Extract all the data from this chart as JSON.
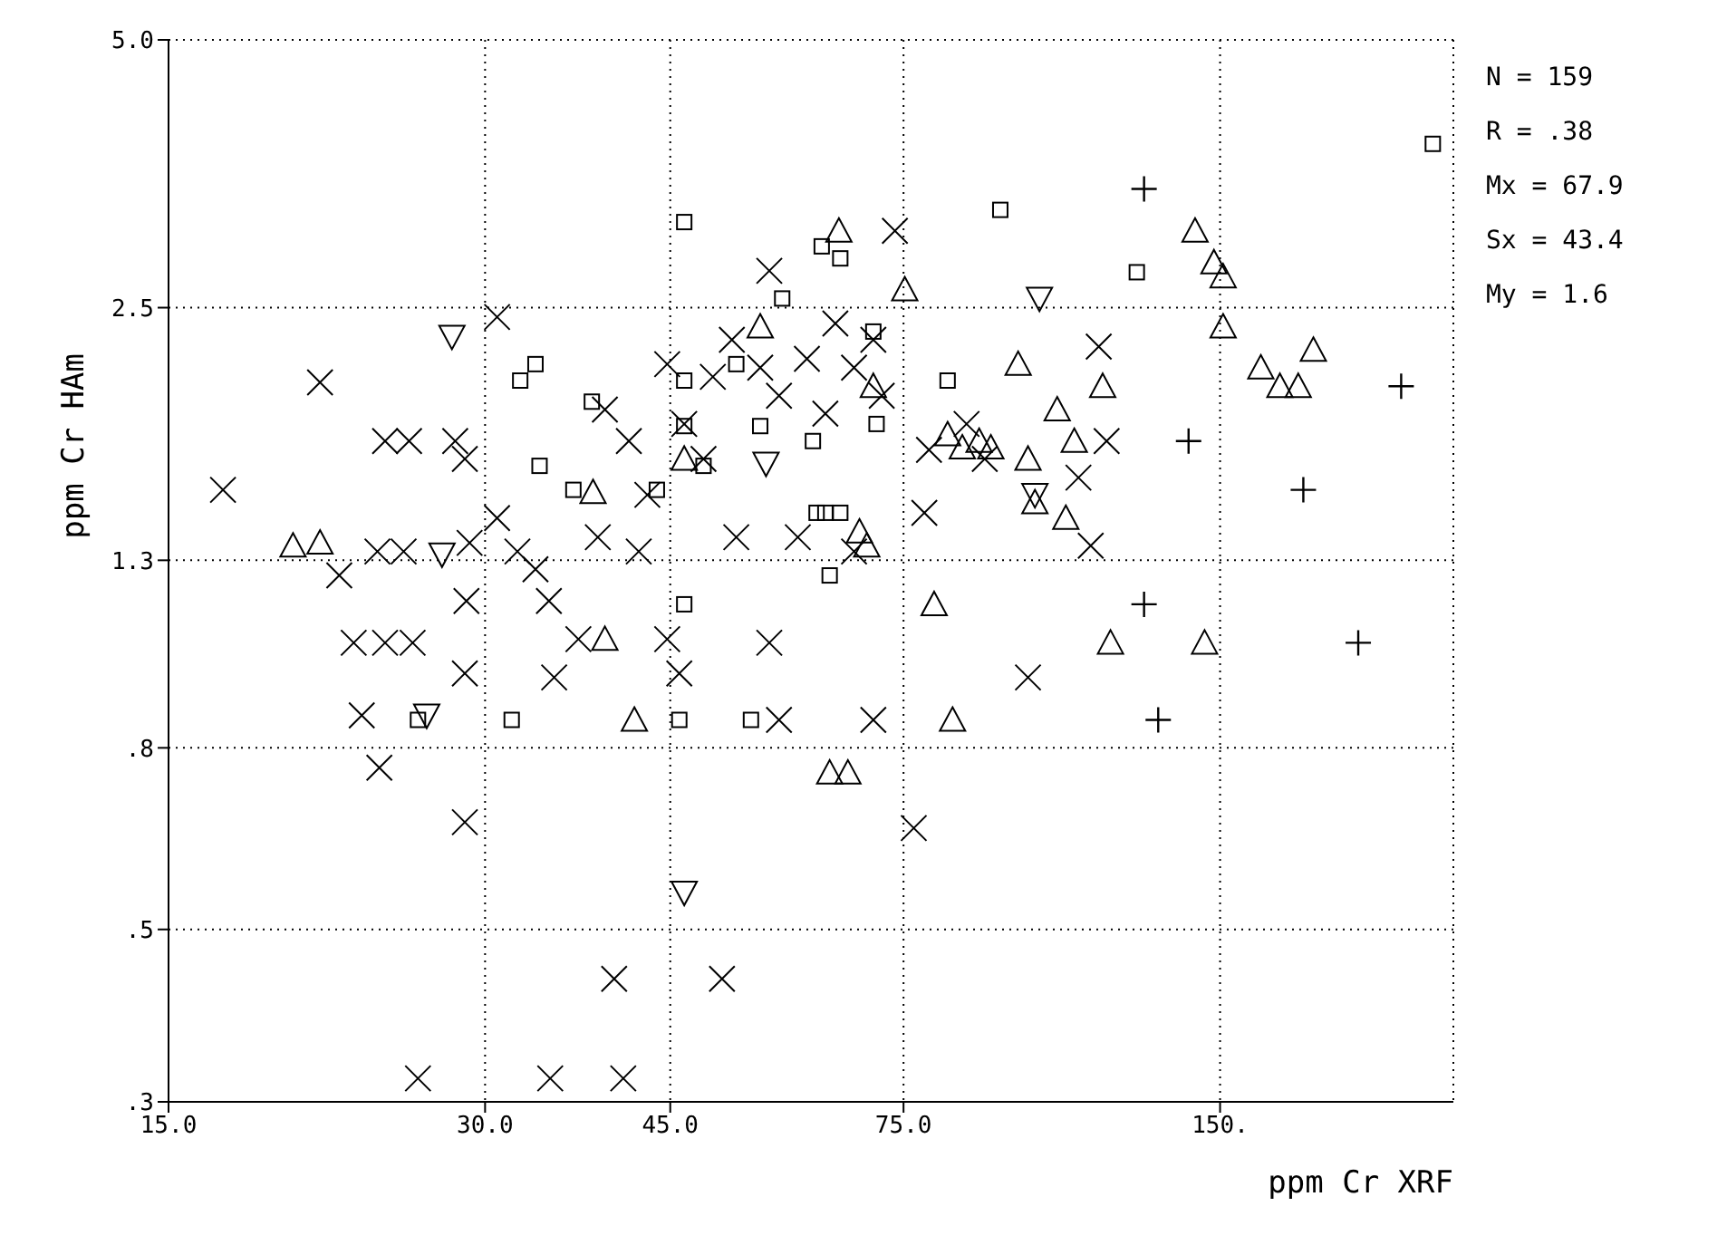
{
  "chart_data": {
    "type": "scatter",
    "xlabel": "ppm Cr XRF",
    "ylabel": "ppm Cr HAm",
    "log": "xy",
    "grid": true,
    "xlim": [
      15,
      250
    ],
    "ylim": [
      0.32,
      5.0
    ],
    "xticks": [
      {
        "value": 15,
        "label": "15.0"
      },
      {
        "value": 30,
        "label": "30.0"
      },
      {
        "value": 45,
        "label": "45.0"
      },
      {
        "value": 75,
        "label": "75.0"
      },
      {
        "value": 150,
        "label": "150."
      }
    ],
    "yticks": [
      {
        "value": 0.32,
        "label": ".3"
      },
      {
        "value": 0.5,
        "label": ".5"
      },
      {
        "value": 0.8,
        "label": ".8"
      },
      {
        "value": 1.3,
        "label": "1.3"
      },
      {
        "value": 2.5,
        "label": "2.5"
      },
      {
        "value": 5.0,
        "label": "5.0"
      }
    ],
    "annotations": [
      "N = 159",
      "R = .38",
      "Mx = 67.9",
      "Sx = 43.4",
      "My = 1.6"
    ],
    "series": [
      {
        "color": "#000000",
        "marker": "cross",
        "x": [
          16.9,
          20.9,
          24.1,
          25.4,
          28.1,
          28.7,
          30.8,
          39.0,
          41.1,
          44.7,
          55.9,
          21.8,
          22.5,
          24.1,
          25.6,
          22.9,
          23.8,
          28.7,
          28.8,
          28.7,
          30.8,
          34.5,
          34.9,
          36.8,
          38.4,
          52.0,
          59.5,
          44.7,
          45.9,
          55.9,
          57.1,
          39.8,
          50.4,
          25.9,
          34.6,
          40.6,
          70.2,
          98.5,
          76.7,
          113,
          73.6,
          115,
          117,
          78.5,
          46.4,
          49.4,
          51.5,
          54.8,
          57.1,
          60.7,
          64.6,
          67.3,
          70.2,
          71.5,
          63.2,
          48.4,
          42.8,
          33.5,
          32.2,
          67.3,
          110,
          86.1,
          89.6,
          79.3,
          42.0,
          29.0,
          25.1,
          23.7
        ],
        "values": [
          1.56,
          2.06,
          1.77,
          1.77,
          1.77,
          1.69,
          2.44,
          1.92,
          1.77,
          2.16,
          2.75,
          1.25,
          1.05,
          1.05,
          1.05,
          0.87,
          0.76,
          0.97,
          1.17,
          0.66,
          1.45,
          1.17,
          0.96,
          1.06,
          1.38,
          1.38,
          1.38,
          1.06,
          0.97,
          1.05,
          0.86,
          0.44,
          0.44,
          0.34,
          0.34,
          0.34,
          0.86,
          0.96,
          0.65,
          1.35,
          3.05,
          2.26,
          1.77,
          1.47,
          1.85,
          2.09,
          2.3,
          2.14,
          1.99,
          2.19,
          2.4,
          2.14,
          2.3,
          1.99,
          1.9,
          1.69,
          1.54,
          1.27,
          1.33,
          1.33,
          1.61,
          1.85,
          1.69,
          1.73,
          1.33,
          1.36,
          1.33,
          1.33
        ]
      },
      {
        "color": "#000000",
        "marker": "square",
        "x": [
          46.4,
          62.7,
          57.5,
          33.5,
          32.4,
          37.9,
          46.4,
          52.0,
          46.4,
          54.8,
          61.5,
          33.8,
          48.4,
          43.7,
          36.4,
          62.0,
          239,
          92.7,
          125,
          65.3,
          70.2,
          82.6,
          70.7,
          63.2,
          65.3,
          46.4,
          25.9,
          31.8,
          45.9,
          53.7,
          63.8
        ],
        "values": [
          3.12,
          2.93,
          2.56,
          2.16,
          2.07,
          1.96,
          2.07,
          2.16,
          1.84,
          1.84,
          1.77,
          1.66,
          1.66,
          1.56,
          1.56,
          1.47,
          3.82,
          3.22,
          2.74,
          2.84,
          2.35,
          2.07,
          1.85,
          1.47,
          1.47,
          1.16,
          0.86,
          0.86,
          0.86,
          0.86,
          1.25
        ]
      },
      {
        "color": "#000000",
        "marker": "triangle",
        "x": [
          20.9,
          38.0,
          46.4,
          54.8,
          65.1,
          75.2,
          142,
          148,
          151,
          151,
          164,
          184,
          171,
          178,
          116,
          96.4,
          105,
          109,
          98.5,
          100,
          107,
          82.6,
          88.5,
          85.3,
          90.8,
          70.2,
          68.1,
          19.7,
          39.0,
          41.6,
          63.8,
          80.2,
          66.4,
          118,
          145,
          83.5,
          69.2
        ],
        "values": [
          1.36,
          1.55,
          1.69,
          2.38,
          3.05,
          2.62,
          3.05,
          2.81,
          2.71,
          2.38,
          2.14,
          2.24,
          2.04,
          2.04,
          2.04,
          2.16,
          1.92,
          1.77,
          1.69,
          1.51,
          1.45,
          1.8,
          1.77,
          1.74,
          1.74,
          2.04,
          1.4,
          1.35,
          1.06,
          0.86,
          0.75,
          1.16,
          0.75,
          1.05,
          1.05,
          0.86,
          1.35
        ]
      },
      {
        "color": "#000000",
        "marker": "triangle-down",
        "x": [
          27.9,
          55.5,
          101,
          100,
          27.3,
          26.4,
          46.4
        ],
        "values": [
          2.32,
          1.67,
          2.56,
          1.54,
          1.32,
          0.87,
          0.55
        ]
      },
      {
        "color": "#000000",
        "marker": "plus",
        "x": [
          127,
          140,
          180,
          223,
          127,
          131,
          203
        ],
        "values": [
          3.4,
          1.77,
          1.56,
          2.04,
          1.16,
          0.86,
          1.05
        ]
      }
    ]
  }
}
